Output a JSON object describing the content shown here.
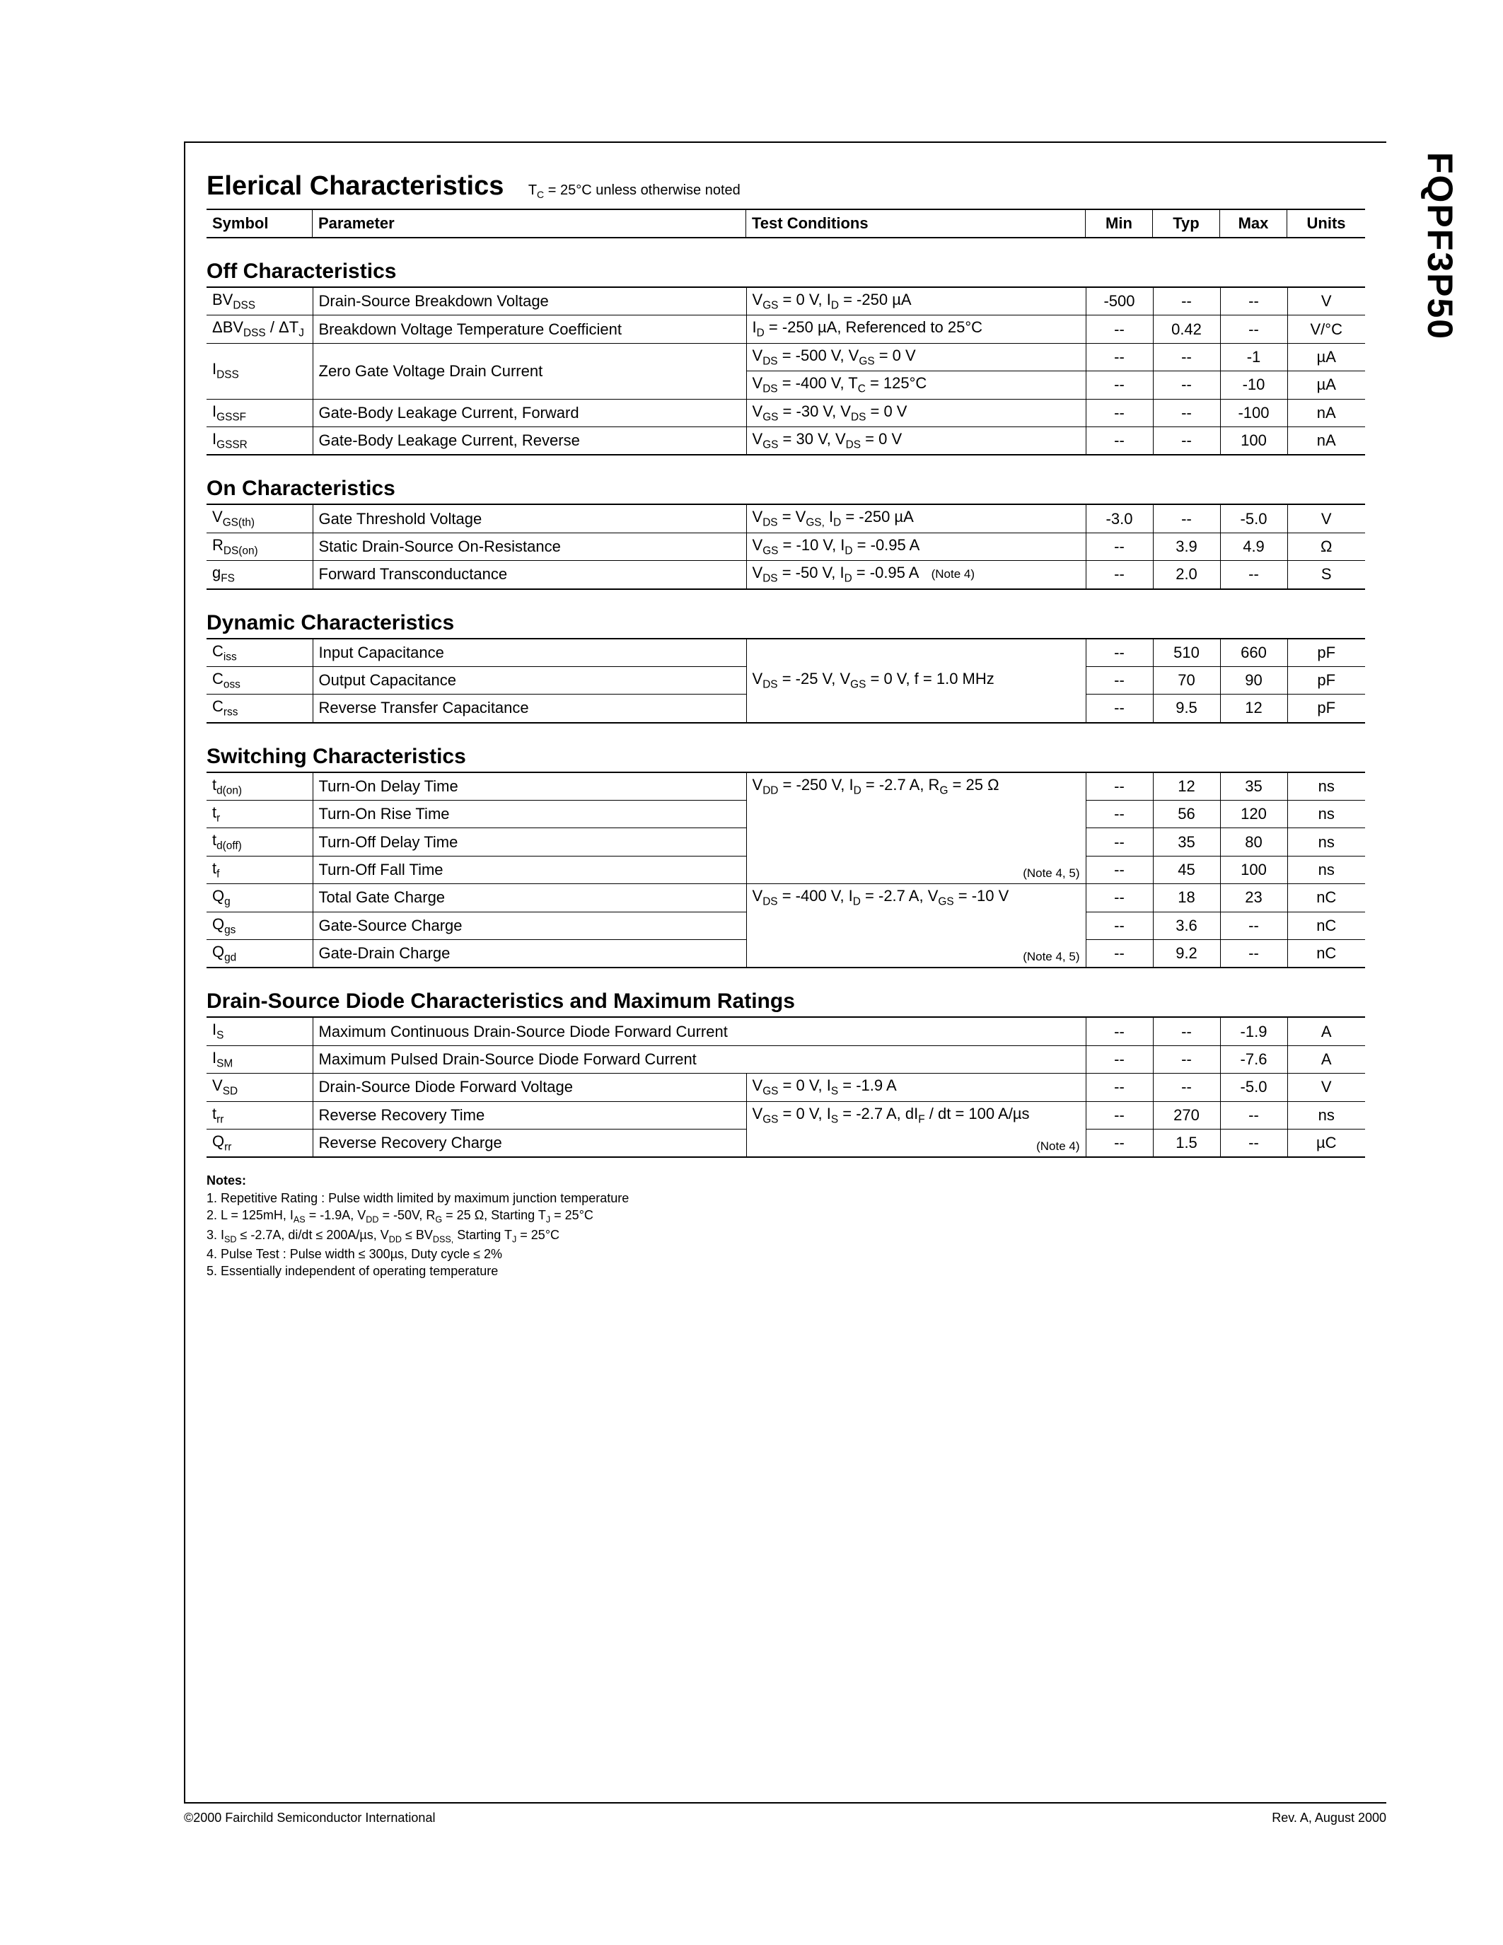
{
  "sideLabel": "FQPF3P50",
  "title": "Elerical Characteristics",
  "titleNote": "T_C = 25°C unless otherwise noted",
  "headers": {
    "symbol": "Symbol",
    "parameter": "Parameter",
    "conditions": "Test Conditions",
    "min": "Min",
    "typ": "Typ",
    "max": "Max",
    "units": "Units"
  },
  "sections": [
    {
      "title": "Off Characteristics",
      "rows": [
        {
          "sym": "BV_DSS",
          "param": "Drain-Source Breakdown Voltage",
          "cond": "V_GS = 0 V, I_D = -250 µA",
          "min": "-500",
          "typ": "--",
          "max": "--",
          "unit": "V"
        },
        {
          "sym": "ΔBV_DSS / ΔT_J",
          "param": "Breakdown Voltage Temperature Coefficient",
          "cond": "I_D = -250 µA, Referenced to 25°C",
          "min": "--",
          "typ": "0.42",
          "max": "--",
          "unit": "V/°C"
        },
        {
          "sym": "I_DSS",
          "param": "Zero Gate Voltage Drain Current",
          "cond": "V_DS = -500 V, V_GS = 0 V",
          "min": "--",
          "typ": "--",
          "max": "-1",
          "unit": "µA",
          "merge": "param",
          "mergeRows": 2
        },
        {
          "sym": "",
          "param": "",
          "cond": "V_DS = -400 V, T_C = 125°C",
          "min": "--",
          "typ": "--",
          "max": "-10",
          "unit": "µA",
          "skipSym": true,
          "skipParam": true
        },
        {
          "sym": "I_GSSF",
          "param": "Gate-Body Leakage Current, Forward",
          "cond": "V_GS = -30 V, V_DS = 0 V",
          "min": "--",
          "typ": "--",
          "max": "-100",
          "unit": "nA"
        },
        {
          "sym": "I_GSSR",
          "param": "Gate-Body Leakage Current, Reverse",
          "cond": "V_GS = 30 V, V_DS = 0 V",
          "min": "--",
          "typ": "--",
          "max": "100",
          "unit": "nA"
        }
      ]
    },
    {
      "title": "On Characteristics",
      "rows": [
        {
          "sym": "V_GS(th)",
          "param": "Gate Threshold Voltage",
          "cond": "V_DS = V_GS, I_D = -250 µA",
          "min": "-3.0",
          "typ": "--",
          "max": "-5.0",
          "unit": "V"
        },
        {
          "sym": "R_DS(on)",
          "param": "Static Drain-Source On-Resistance",
          "cond": "V_GS = -10 V, I_D = -0.95 A",
          "min": "--",
          "typ": "3.9",
          "max": "4.9",
          "unit": "Ω"
        },
        {
          "sym": "g_FS",
          "param": "Forward Transconductance",
          "cond": "V_DS = -50 V, I_D = -0.95 A",
          "note": "(Note 4)",
          "min": "--",
          "typ": "2.0",
          "max": "--",
          "unit": "S"
        }
      ]
    },
    {
      "title": "Dynamic Characteristics",
      "rows": [
        {
          "sym": "C_iss",
          "param": "Input Capacitance",
          "cond": "V_DS = -25 V, V_GS = 0 V, f = 1.0 MHz",
          "condRowspan": 3,
          "min": "--",
          "typ": "510",
          "max": "660",
          "unit": "pF"
        },
        {
          "sym": "C_oss",
          "param": "Output Capacitance",
          "skipCond": true,
          "min": "--",
          "typ": "70",
          "max": "90",
          "unit": "pF"
        },
        {
          "sym": "C_rss",
          "param": "Reverse Transfer Capacitance",
          "skipCond": true,
          "min": "--",
          "typ": "9.5",
          "max": "12",
          "unit": "pF"
        }
      ]
    },
    {
      "title": "Switching Characteristics",
      "rows": [
        {
          "sym": "t_d(on)",
          "param": "Turn-On Delay Time",
          "cond": "V_DD = -250 V, I_D = -2.7 A, R_G = 25 Ω",
          "condRowspan": 4,
          "note": "(Note 4, 5)",
          "notePos": "bottom",
          "min": "--",
          "typ": "12",
          "max": "35",
          "unit": "ns"
        },
        {
          "sym": "t_r",
          "param": "Turn-On Rise Time",
          "skipCond": true,
          "min": "--",
          "typ": "56",
          "max": "120",
          "unit": "ns"
        },
        {
          "sym": "t_d(off)",
          "param": "Turn-Off Delay Time",
          "skipCond": true,
          "min": "--",
          "typ": "35",
          "max": "80",
          "unit": "ns"
        },
        {
          "sym": "t_f",
          "param": "Turn-Off Fall Time",
          "skipCond": true,
          "min": "--",
          "typ": "45",
          "max": "100",
          "unit": "ns"
        },
        {
          "sym": "Q_g",
          "param": "Total Gate Charge",
          "cond": "V_DS = -400 V, I_D = -2.7 A, V_GS = -10 V",
          "condRowspan": 3,
          "note": "(Note 4, 5)",
          "notePos": "bottom",
          "min": "--",
          "typ": "18",
          "max": "23",
          "unit": "nC"
        },
        {
          "sym": "Q_gs",
          "param": "Gate-Source Charge",
          "skipCond": true,
          "min": "--",
          "typ": "3.6",
          "max": "--",
          "unit": "nC"
        },
        {
          "sym": "Q_gd",
          "param": "Gate-Drain Charge",
          "skipCond": true,
          "min": "--",
          "typ": "9.2",
          "max": "--",
          "unit": "nC"
        }
      ]
    },
    {
      "title": "Drain-Source Diode Characteristics and Maximum Ratings",
      "rows": [
        {
          "sym": "I_S",
          "param": "Maximum Continuous Drain-Source Diode Forward Current",
          "spanCond": true,
          "min": "--",
          "typ": "--",
          "max": "-1.9",
          "unit": "A"
        },
        {
          "sym": "I_SM",
          "param": "Maximum Pulsed Drain-Source Diode Forward Current",
          "spanCond": true,
          "min": "--",
          "typ": "--",
          "max": "-7.6",
          "unit": "A"
        },
        {
          "sym": "V_SD",
          "param": "Drain-Source Diode Forward Voltage",
          "cond": "V_GS = 0 V, I_S = -1.9 A",
          "min": "--",
          "typ": "--",
          "max": "-5.0",
          "unit": "V"
        },
        {
          "sym": "t_rr",
          "param": "Reverse Recovery Time",
          "cond": "V_GS = 0 V, I_S = -2.7 A, dI_F / dt = 100 A/µs",
          "condRowspan": 2,
          "note": "(Note 4)",
          "notePos": "bottom",
          "min": "--",
          "typ": "270",
          "max": "--",
          "unit": "ns"
        },
        {
          "sym": "Q_rr",
          "param": "Reverse Recovery Charge",
          "skipCond": true,
          "min": "--",
          "typ": "1.5",
          "max": "--",
          "unit": "µC"
        }
      ]
    }
  ],
  "notesTitle": "Notes:",
  "notes": [
    "1. Repetitive Rating : Pulse width limited by maximum junction temperature",
    "2. L = 125mH, I_AS = -1.9A, V_DD = -50V, R_G = 25 Ω, Starting T_J = 25°C",
    "3. I_SD ≤ -2.7A, di/dt ≤ 200A/µs, V_DD ≤ BV_DSS, Starting T_J = 25°C",
    "4. Pulse Test : Pulse width ≤ 300µs, Duty cycle ≤ 2%",
    "5. Essentially independent of operating temperature"
  ],
  "footerLeft": "©2000 Fairchild Semiconductor International",
  "footerRight": "Rev. A, August 2000"
}
